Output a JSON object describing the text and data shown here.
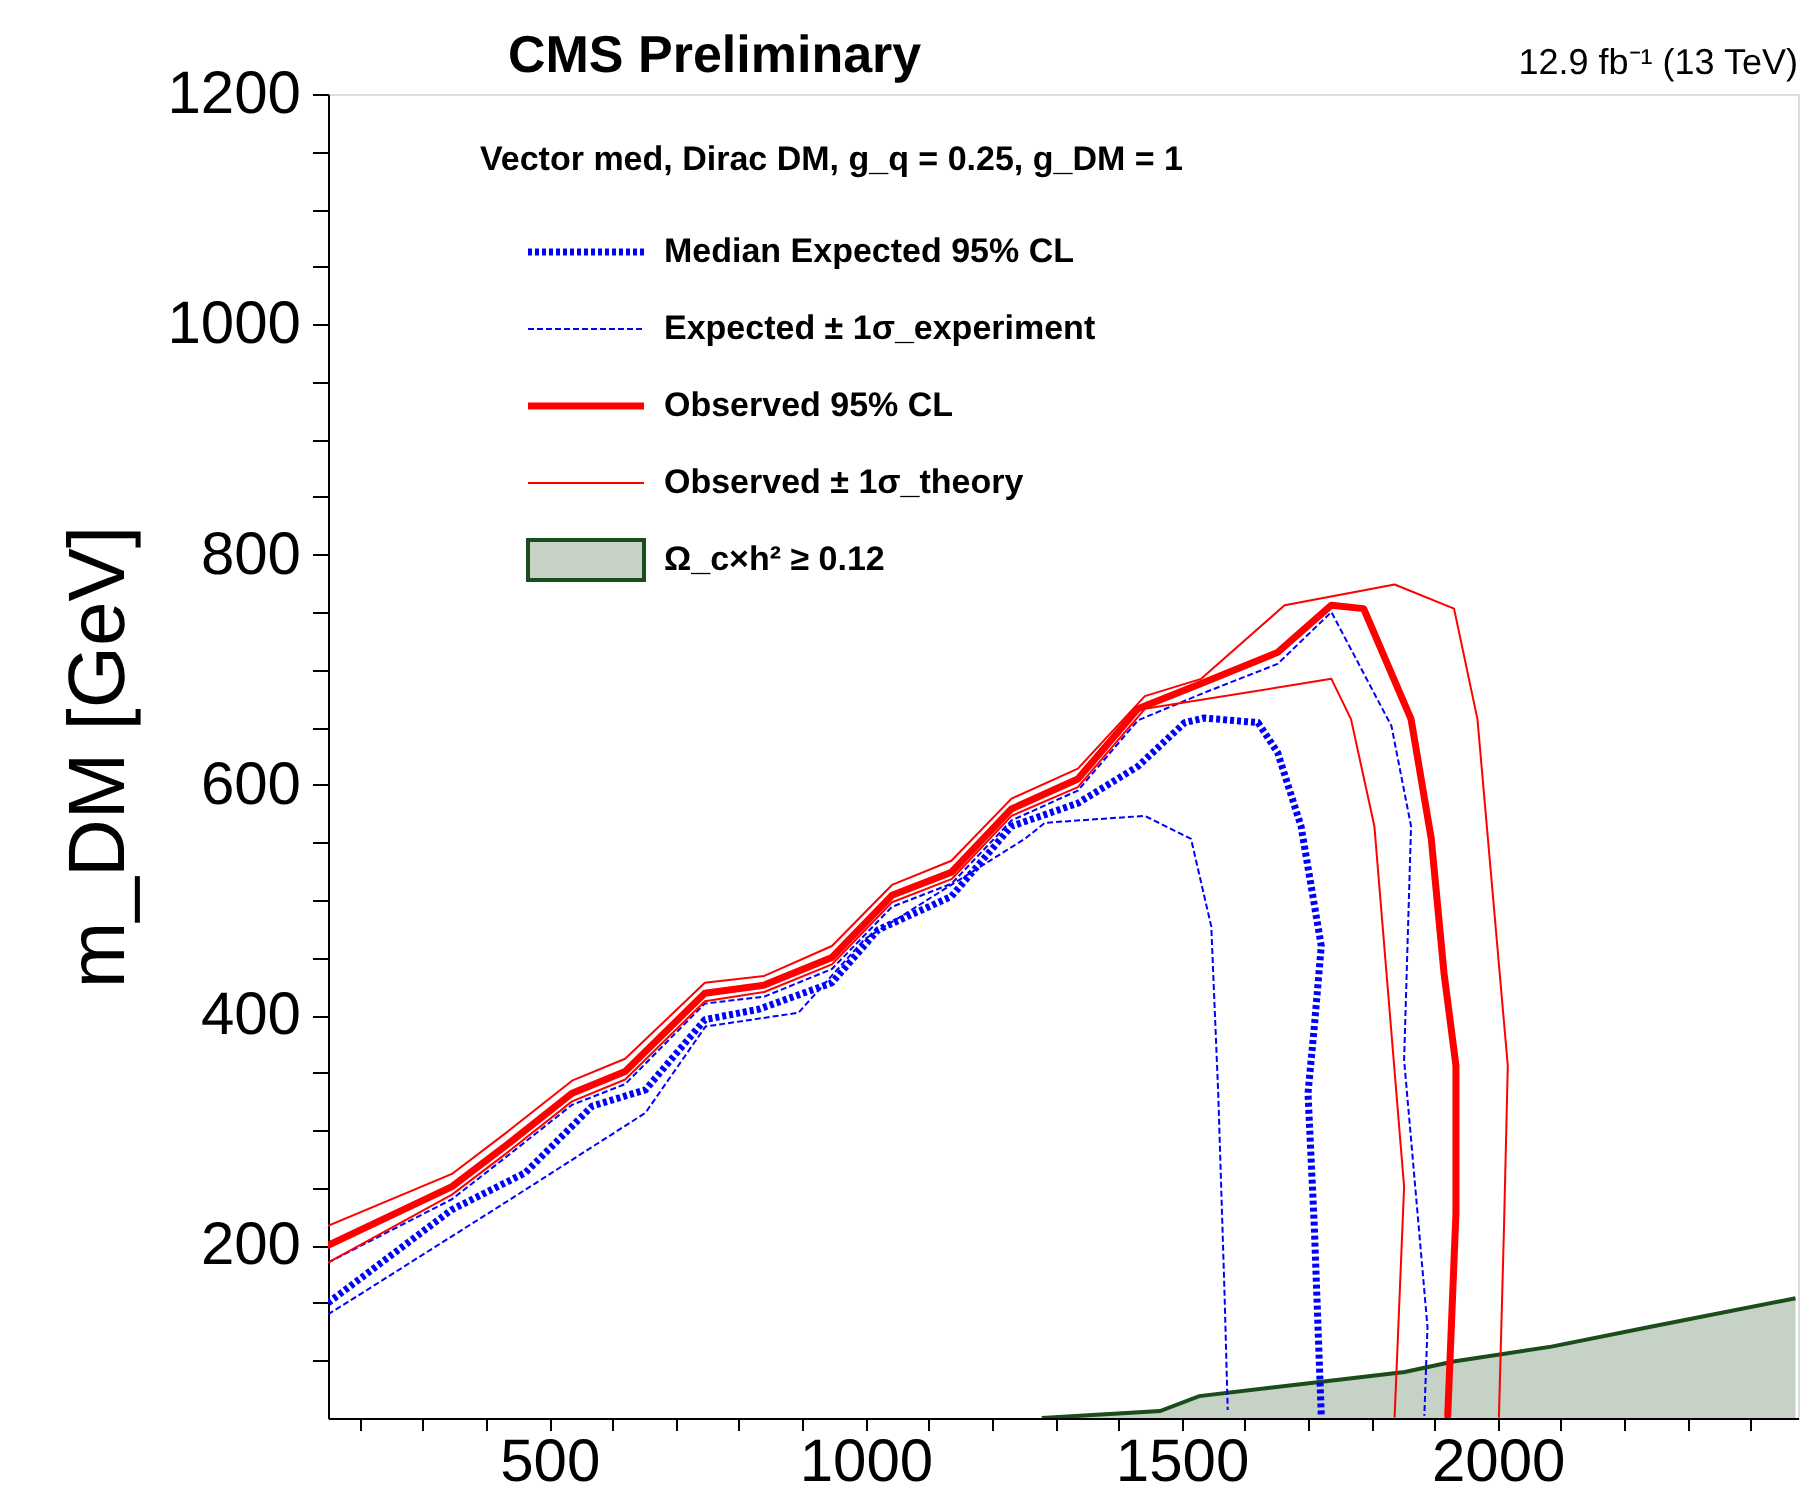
{
  "chart_data": {
    "type": "line",
    "title": "CMS Preliminary",
    "ylabel": "m_DM [GeV]",
    "annotations": [
      "12.9 fb⁻¹ (13 TeV)",
      "Vector med, Dirac DM, g_q = 0.25, g_DM = 1"
    ],
    "xlim": [
      150,
      2475
    ],
    "ylim": [
      50,
      1200
    ],
    "xticks": [
      {
        "value": 200,
        "label": null
      },
      {
        "value": 300,
        "label": null
      },
      {
        "value": 400,
        "label": null
      },
      500,
      {
        "value": 600,
        "label": null
      },
      {
        "value": 700,
        "label": null
      },
      {
        "value": 800,
        "label": null
      },
      {
        "value": 900,
        "label": null
      },
      1000,
      {
        "value": 1100,
        "label": null
      },
      {
        "value": 1200,
        "label": null
      },
      {
        "value": 1300,
        "label": null
      },
      {
        "value": 1400,
        "label": null
      },
      1500,
      {
        "value": 1600,
        "label": null
      },
      {
        "value": 1700,
        "label": null
      },
      {
        "value": 1800,
        "label": null
      },
      {
        "value": 1900,
        "label": null
      },
      2000,
      {
        "value": 2100,
        "label": null
      },
      {
        "value": 2200,
        "label": null
      },
      {
        "value": 2300,
        "label": null
      },
      {
        "value": 2400,
        "label": null
      }
    ],
    "yticks": [
      {
        "value": 100,
        "label": null
      },
      {
        "value": 150,
        "label": null
      },
      200,
      {
        "value": 250,
        "label": null
      },
      {
        "value": 300,
        "label": null
      },
      {
        "value": 350,
        "label": null
      },
      400,
      {
        "value": 450,
        "label": null
      },
      {
        "value": 500,
        "label": null
      },
      {
        "value": 550,
        "label": null
      },
      600,
      {
        "value": 650,
        "label": null
      },
      {
        "value": 700,
        "label": null
      },
      {
        "value": 750,
        "label": null
      },
      800,
      {
        "value": 850,
        "label": null
      },
      {
        "value": 900,
        "label": null
      },
      {
        "value": 950,
        "label": null
      },
      1000,
      {
        "value": 1050,
        "label": null
      },
      {
        "value": 1100,
        "label": null
      },
      {
        "value": 1150,
        "label": null
      },
      1200
    ],
    "legend": "top left",
    "grid": false,
    "series": [
      {
        "name": "Median Expected 95% CL",
        "color": "#0000ff",
        "line_style": "dotted",
        "x": [
          150,
          283,
          346,
          462,
          568,
          652,
          746,
          831,
          947,
          1020,
          1136,
          1231,
          1336,
          1431,
          1505,
          1536,
          1621,
          1652,
          1689,
          1721,
          1710,
          1700,
          1710,
          1721
        ],
        "values": [
          150,
          205,
          231,
          263,
          321,
          335,
          396,
          405,
          428,
          474,
          503,
          564,
          584,
          616,
          654,
          658,
          654,
          628,
          564,
          460,
          390,
          332,
          216,
          52
        ]
      },
      {
        "name": "Expected ± 1σ_experiment",
        "color": "#0000ff",
        "line_style": "dashed",
        "x": [
          150,
          346,
          430,
          536,
          620,
          746,
          840,
          947,
          1042,
          1136,
          1231,
          1336,
          1431,
          1536,
          1652,
          1737,
          1832,
          1863,
          1852,
          1889,
          1884
        ],
        "values": [
          185,
          240,
          276,
          322,
          340,
          410,
          416,
          440,
          494,
          514,
          569,
          595,
          656,
          680,
          705,
          750,
          651,
          564,
          361,
          129,
          52
        ]
      },
      {
        "color": "#0000ff",
        "line_style": "dashed",
        "x": [
          150,
          188,
          430,
          652,
          747,
          894,
          999,
          1252,
          1284,
          1442,
          1515,
          1547,
          1558,
          1568,
          1573
        ],
        "values": [
          140,
          153,
          237,
          315,
          390,
          402,
          466,
          553,
          567,
          573,
          553,
          477,
          332,
          158,
          57
        ]
      },
      {
        "name": "Observed 95% CL",
        "color": "#ff0000",
        "line_style": "solid",
        "x": [
          150,
          346,
          430,
          536,
          620,
          746,
          840,
          947,
          1042,
          1136,
          1231,
          1336,
          1431,
          1536,
          1652,
          1737,
          1788,
          1863,
          1895,
          1915,
          1934,
          1934,
          1921
        ],
        "values": [
          200,
          251,
          286,
          332,
          351,
          419,
          426,
          450,
          504,
          524,
          579,
          605,
          666,
          689,
          715,
          756,
          753,
          657,
          553,
          437,
          356,
          228,
          52
        ]
      },
      {
        "name": "Observed ± 1σ_theory",
        "color": "#ff0000",
        "line_style": "solid",
        "x": [
          150,
          346,
          430,
          536,
          620,
          746,
          840,
          947,
          1042,
          1136,
          1231,
          1336,
          1442,
          1531,
          1663,
          1837,
          1931,
          1968,
          2016,
          2010,
          2002
        ],
        "values": [
          217,
          262,
          297,
          343,
          362,
          428,
          434,
          460,
          513,
          534,
          588,
          614,
          677,
          692,
          756,
          774,
          753,
          657,
          356,
          216,
          51
        ]
      },
      {
        "color": "#ff0000",
        "line_style": "solid",
        "x": [
          150,
          346,
          430,
          536,
          620,
          746,
          840,
          947,
          1042,
          1136,
          1231,
          1336,
          1442,
          1737,
          1768,
          1805,
          1852,
          1837
        ],
        "values": [
          185,
          244,
          279,
          325,
          344,
          412,
          420,
          444,
          498,
          518,
          573,
          598,
          666,
          692,
          657,
          564,
          251,
          51
        ]
      },
      {
        "name": "Ω_c×h² ≥ 0.12",
        "type": "area",
        "color": "#1a4d1a",
        "x": [
          1279,
          1466,
          1528,
          1698,
          1853,
          1930,
          2085,
          2240,
          2471
        ],
        "values": [
          50,
          56,
          69,
          80,
          90,
          99,
          112,
          129,
          154
        ]
      }
    ]
  }
}
